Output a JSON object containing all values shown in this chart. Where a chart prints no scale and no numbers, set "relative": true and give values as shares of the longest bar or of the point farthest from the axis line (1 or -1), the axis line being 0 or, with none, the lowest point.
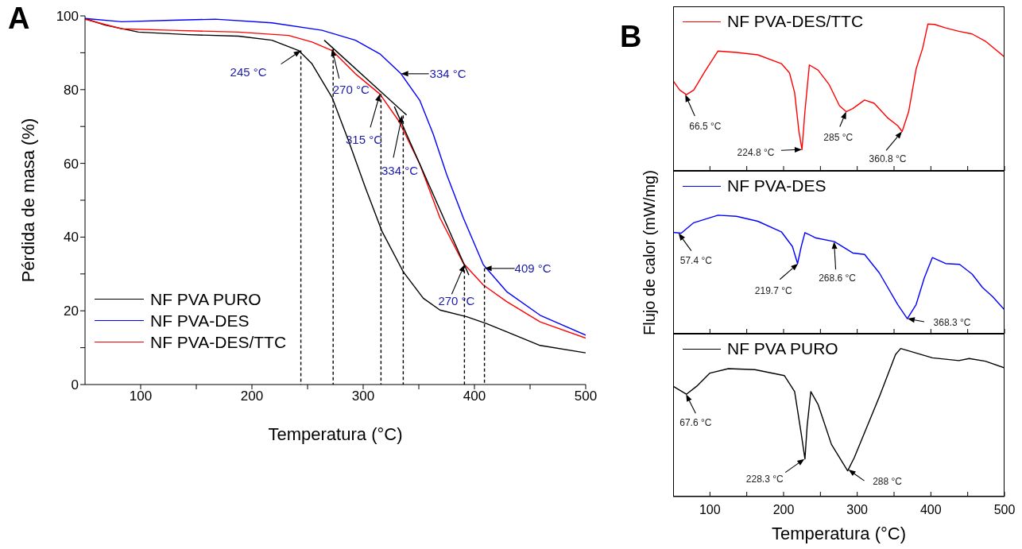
{
  "chart_data": [
    {
      "type": "line",
      "title": "A",
      "xlabel": "Temperatura (°C)",
      "ylabel": "Pérdida de masa (%)",
      "xlim": [
        50,
        500
      ],
      "xticks": [
        100,
        {
          "value": 150,
          "label": null
        },
        200,
        {
          "value": 250,
          "label": null
        },
        300,
        {
          "value": 350,
          "label": null
        },
        400,
        {
          "value": 450,
          "label": null
        },
        500
      ],
      "ylim": [
        0,
        100
      ],
      "yticks": [
        0,
        {
          "value": 10,
          "label": null
        },
        20,
        {
          "value": 30,
          "label": null
        },
        40,
        {
          "value": 50,
          "label": null
        },
        60,
        {
          "value": 70,
          "label": null
        },
        80,
        {
          "value": 90,
          "label": null
        },
        100
      ],
      "legend": "bottom left",
      "marker": "none",
      "line_style": "solid",
      "series": [
        {
          "name": "NF PVA PURO",
          "color": "#000000",
          "x": [
            50,
            68,
            98,
            143,
            188,
            218,
            242,
            254,
            272,
            287,
            302,
            317,
            336,
            354,
            369,
            393,
            411,
            429,
            459,
            500
          ],
          "values": [
            99.3,
            97.5,
            95.6,
            94.9,
            94.5,
            93.4,
            90.6,
            87,
            77.9,
            66,
            53.4,
            41.5,
            30.6,
            23.4,
            20.2,
            18.4,
            16.5,
            14.3,
            10.6,
            8.6
          ]
        },
        {
          "name": "NF PVA-DES",
          "color": "#0000ff",
          "x": [
            50,
            83,
            128,
            167,
            218,
            263,
            293,
            315,
            334,
            351,
            363,
            375,
            390,
            408,
            429,
            459,
            500
          ],
          "values": [
            99.3,
            98.4,
            98.8,
            99.1,
            98.1,
            96.1,
            93.4,
            89.7,
            84.3,
            77,
            67.9,
            57,
            45.2,
            32.5,
            25.2,
            18.8,
            13.4
          ]
        },
        {
          "name": "NF PVA-DES/TTC",
          "color": "#ff0000",
          "x": [
            50,
            83,
            128,
            188,
            233,
            254,
            272,
            293,
            315,
            332,
            351,
            369,
            390,
            408,
            429,
            459,
            500
          ],
          "values": [
            99.1,
            96.5,
            96.1,
            95.6,
            94.7,
            92.9,
            90.6,
            84.3,
            78.8,
            71.5,
            59.7,
            45.2,
            32.9,
            27,
            22.5,
            17,
            12.6
          ]
        },
        {
          "type": "line",
          "color": "#000000",
          "x": [
            265,
            339
          ],
          "values": [
            93.4,
            73.1
          ]
        },
        {
          "type": "line",
          "color": "#000000",
          "x": [
            328,
            395
          ],
          "values": [
            75.4,
            29.7
          ]
        },
        {
          "type": "line",
          "color": "#000000",
          "line_style": "dashed",
          "x": [
            244,
            244
          ],
          "values": [
            90.6,
            0
          ]
        },
        {
          "type": "line",
          "color": "#000000",
          "line_style": "dashed",
          "x": [
            273,
            273
          ],
          "values": [
            91,
            0
          ]
        },
        {
          "type": "line",
          "color": "#000000",
          "line_style": "dashed",
          "x": [
            316,
            316
          ],
          "values": [
            78.8,
            0
          ]
        },
        {
          "type": "line",
          "color": "#000000",
          "line_style": "dashed",
          "x": [
            336,
            336
          ],
          "values": [
            73,
            0
          ]
        },
        {
          "type": "line",
          "color": "#000000",
          "line_style": "dashed",
          "x": [
            391,
            391
          ],
          "values": [
            32.5,
            0
          ]
        },
        {
          "type": "line",
          "color": "#000000",
          "line_style": "dashed",
          "x": [
            409,
            409
          ],
          "values": [
            31.5,
            0
          ]
        }
      ],
      "annotations": [
        {
          "text": "245 °C",
          "x": 244,
          "y": 90.6
        },
        {
          "text": "270 °C",
          "x": 272,
          "y": 91
        },
        {
          "text": "315 °C",
          "x": 315,
          "y": 78.8
        },
        {
          "text": "334 °C",
          "x": 335,
          "y": 73
        },
        {
          "text": "334 °C",
          "x": 334,
          "y": 84.3
        },
        {
          "text": "270 °C",
          "x": 391,
          "y": 32.5
        },
        {
          "text": "409 °C",
          "x": 409,
          "y": 31.5
        }
      ]
    },
    {
      "type": "line",
      "title": "B",
      "relative": true,
      "xlim": [
        50,
        500
      ],
      "xticks": [
        100,
        {
          "value": 150,
          "label": null
        },
        200,
        {
          "value": 250,
          "label": null
        },
        300,
        {
          "value": 350,
          "label": null
        },
        400,
        {
          "value": 450,
          "label": null
        },
        500
      ],
      "tick_labels": false,
      "legend": "top left",
      "marker": "none",
      "series": [
        {
          "name": "NF PVA-DES/TTC",
          "color": "#ff0000",
          "x": [
            50,
            59,
            68,
            78,
            93,
            111,
            136,
            165,
            197,
            208,
            215,
            221,
            225,
            229,
            235,
            247,
            262,
            276,
            285,
            294,
            310,
            323,
            341,
            355,
            361,
            370,
            380,
            389,
            396,
            405,
            420,
            438,
            456,
            474,
            500
          ],
          "values": [
            0.613,
            0.55,
            0.519,
            0.55,
            0.676,
            0.816,
            0.806,
            0.79,
            0.73,
            0.667,
            0.532,
            0.262,
            0.145,
            0.406,
            0.721,
            0.685,
            0.586,
            0.442,
            0.403,
            0.424,
            0.482,
            0.46,
            0.362,
            0.307,
            0.268,
            0.406,
            0.694,
            0.838,
            1,
            0.997,
            0.973,
            0.95,
            0.932,
            0.883,
            0.775
          ]
        }
      ],
      "annotations": [
        {
          "text": "66.5 °C",
          "x": 66.5,
          "y": 0.519
        },
        {
          "text": "224.8 °C",
          "x": 224.8,
          "y": 0.145
        },
        {
          "text": "285 °C",
          "x": 285,
          "y": 0.403
        },
        {
          "text": "360.8 °C",
          "x": 360.8,
          "y": 0.268
        }
      ]
    },
    {
      "type": "line",
      "ylabel": "Flujo de calor (mW/mg)",
      "relative": true,
      "xlim": [
        50,
        500
      ],
      "xticks": [
        100,
        {
          "value": 150,
          "label": null
        },
        200,
        {
          "value": 250,
          "label": null
        },
        300,
        {
          "value": 350,
          "label": null
        },
        400,
        {
          "value": 450,
          "label": null
        },
        500
      ],
      "tick_labels": false,
      "legend": "top left",
      "marker": "none",
      "series": [
        {
          "name": "NF PVA-DES",
          "color": "#0000ff",
          "x": [
            50,
            61,
            78,
            111,
            136,
            165,
            197,
            212,
            219,
            224,
            229,
            244,
            269,
            294,
            310,
            330,
            355,
            368,
            380,
            391,
            402,
            420,
            439,
            456,
            470,
            484,
            500
          ],
          "values": [
            0.855,
            0.848,
            0.937,
            1,
            0.991,
            0.949,
            0.86,
            0.736,
            0.592,
            0.736,
            0.853,
            0.808,
            0.777,
            0.681,
            0.669,
            0.513,
            0.246,
            0.127,
            0.246,
            0.469,
            0.643,
            0.592,
            0.585,
            0.503,
            0.391,
            0.312,
            0.201
          ]
        }
      ],
      "annotations": [
        {
          "text": "57.4 °C",
          "x": 57.4,
          "y": 0.848
        },
        {
          "text": "219.7 °C",
          "x": 219.7,
          "y": 0.592
        },
        {
          "text": "268.6 °C",
          "x": 268.6,
          "y": 0.777
        },
        {
          "text": "368.3 °C",
          "x": 368.3,
          "y": 0.127
        }
      ]
    },
    {
      "type": "line",
      "xlabel": "Temperatura (°C)",
      "relative": true,
      "xlim": [
        50,
        500
      ],
      "xticks": [
        100,
        {
          "value": 150,
          "label": null
        },
        200,
        {
          "value": 250,
          "label": null
        },
        300,
        {
          "value": 350,
          "label": null
        },
        400,
        {
          "value": 450,
          "label": null
        },
        500
      ],
      "tick_labels": "x",
      "legend": "top left",
      "marker": "none",
      "series": [
        {
          "name": "NF PVA PURO",
          "color": "#000000",
          "x": [
            50,
            68,
            82,
            100,
            125,
            161,
            201,
            215,
            224,
            229,
            232,
            237,
            247,
            265,
            287,
            296,
            330,
            352,
            359,
            402,
            438,
            452,
            474,
            500
          ],
          "values": [
            0.745,
            0.691,
            0.745,
            0.834,
            0.864,
            0.857,
            0.817,
            0.709,
            0.423,
            0.254,
            0.477,
            0.709,
            0.62,
            0.352,
            0.174,
            0.263,
            0.674,
            0.959,
            1,
            0.937,
            0.918,
            0.932,
            0.914,
            0.869
          ]
        }
      ],
      "annotations": [
        {
          "text": "67.6 °C",
          "x": 67.6,
          "y": 0.691
        },
        {
          "text": "228.3 °C",
          "x": 228.3,
          "y": 0.254
        },
        {
          "text": "288 °C",
          "x": 288,
          "y": 0.182
        }
      ]
    }
  ]
}
